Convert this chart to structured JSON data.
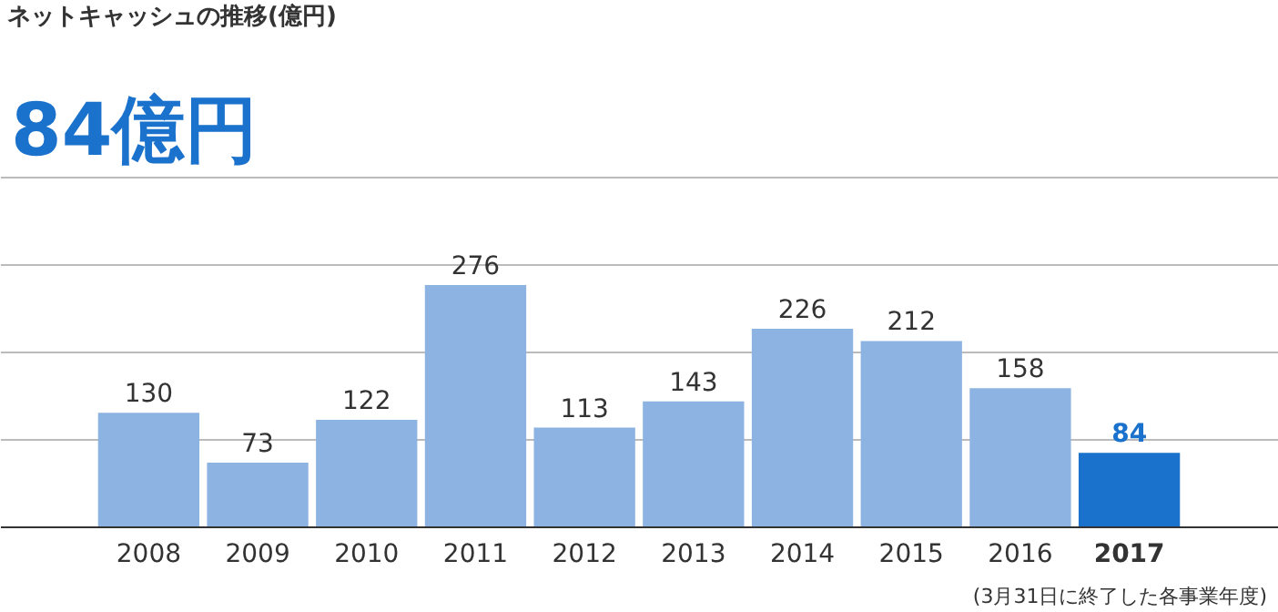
{
  "chart_data": {
    "type": "bar",
    "title": "ネットキャッシュの推移(億円)",
    "subtitle": "84億円",
    "categories": [
      "2008",
      "2009",
      "2010",
      "2011",
      "2012",
      "2013",
      "2014",
      "2015",
      "2016",
      "2017"
    ],
    "values": [
      130,
      73,
      122,
      276,
      113,
      143,
      226,
      212,
      158,
      84
    ],
    "colors": [
      "#8db3e2",
      "#8db3e2",
      "#8db3e2",
      "#8db3e2",
      "#8db3e2",
      "#8db3e2",
      "#8db3e2",
      "#8db3e2",
      "#8db3e2",
      "#1a72cc"
    ],
    "data_labels": true,
    "ylim": [
      0,
      400
    ],
    "yticks": [
      {
        "value": 100,
        "label": null
      },
      {
        "value": 200,
        "label": null
      },
      {
        "value": 300,
        "label": null
      },
      {
        "value": 400,
        "label": null
      }
    ],
    "tick_labels": "x",
    "grid": "y",
    "annotations": [
      "(3月31日に終了した各事業年度)"
    ]
  }
}
